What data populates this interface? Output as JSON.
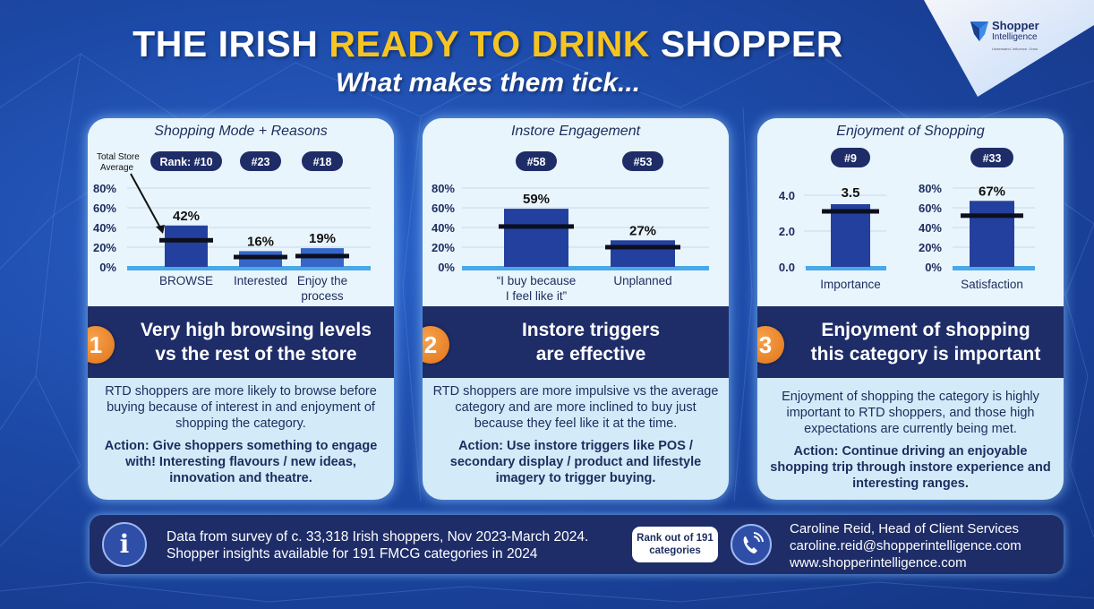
{
  "header": {
    "title_part1": "THE IRISH",
    "title_highlight": "READY TO DRINK",
    "title_part3": "SHOPPER",
    "subtitle": "What makes them tick..."
  },
  "logo": {
    "line1": "Shopper",
    "line2": "Intelligence",
    "line3": "Understand. Influence. Grow."
  },
  "colors": {
    "accent_yellow": "#f5c423",
    "navy": "#1e2d68",
    "bar": "#24409e",
    "badge_orange": "#e8842a",
    "panel_bg": "#d3ebf8"
  },
  "panels": [
    {
      "title": "Shopping Mode + Reasons",
      "number": "1",
      "headline_line1": "Very high browsing levels",
      "headline_line2": "vs the rest of the store",
      "body": "RTD shoppers are more likely to browse before buying because of interest in and enjoyment of shopping the category.",
      "action": "Action: Give shoppers something to engage with! Interesting flavours / new ideas, innovation and theatre."
    },
    {
      "title": "Instore Engagement",
      "number": "2",
      "headline_line1": "Instore triggers",
      "headline_line2": "are effective",
      "body": "RTD shoppers are more impulsive vs the average category and are more inclined to buy just because they feel like it at the time.",
      "action": "Action: Use instore triggers like POS / secondary display / product and lifestyle imagery to trigger buying."
    },
    {
      "title": "Enjoyment of Shopping",
      "number": "3",
      "headline_line1": "Enjoyment of shopping",
      "headline_line2": "this category is important",
      "body": "Enjoyment of shopping the category is highly important to RTD shoppers, and those high expectations are currently being met.",
      "action": "Action: Continue driving an enjoyable shopping trip through instore experience and interesting ranges."
    }
  ],
  "chart_data": [
    {
      "type": "bar",
      "annotation": "Total Store Average",
      "categories": [
        "BROWSE",
        "Interested",
        "Enjoy the process"
      ],
      "values": [
        42,
        16,
        19
      ],
      "value_labels": [
        "42%",
        "16%",
        "19%"
      ],
      "total_store_average": [
        27,
        10,
        11
      ],
      "ranks": [
        "Rank: #10",
        "#23",
        "#18"
      ],
      "yticks": [
        "0%",
        "20%",
        "40%",
        "60%",
        "80%"
      ],
      "ylim": [
        0,
        80
      ]
    },
    {
      "type": "bar",
      "categories": [
        "“I buy because I feel like it”",
        "Unplanned"
      ],
      "values": [
        59,
        27
      ],
      "value_labels": [
        "59%",
        "27%"
      ],
      "total_store_average": [
        41,
        20
      ],
      "ranks": [
        "#58",
        "#53"
      ],
      "yticks": [
        "0%",
        "20%",
        "40%",
        "60%",
        "80%"
      ],
      "ylim": [
        0,
        80
      ]
    },
    {
      "type": "bar",
      "categories": [
        "Importance"
      ],
      "values": [
        3.5
      ],
      "value_labels": [
        "3.5"
      ],
      "total_store_average": [
        3.1
      ],
      "ranks": [
        "#9"
      ],
      "yticks": [
        "0.0",
        "2.0",
        "4.0"
      ],
      "ylim": [
        0,
        4
      ]
    },
    {
      "type": "bar",
      "categories": [
        "Satisfaction"
      ],
      "values": [
        67
      ],
      "value_labels": [
        "67%"
      ],
      "total_store_average": [
        52
      ],
      "ranks": [
        "#33"
      ],
      "yticks": [
        "0%",
        "20%",
        "40%",
        "60%",
        "80%"
      ],
      "ylim": [
        0,
        80
      ]
    }
  ],
  "footer": {
    "info_line1": "Data from survey of c. 33,318 Irish shoppers, Nov 2023-March 2024.",
    "info_line2": "Shopper insights available for 191 FMCG categories in 2024",
    "rank_line1": "Rank out of 191",
    "rank_line2": "categories",
    "contact_name": "Caroline Reid, Head of Client Services",
    "contact_email": "caroline.reid@shopperintelligence.com",
    "contact_web": "www.shopperintelligence.com"
  }
}
